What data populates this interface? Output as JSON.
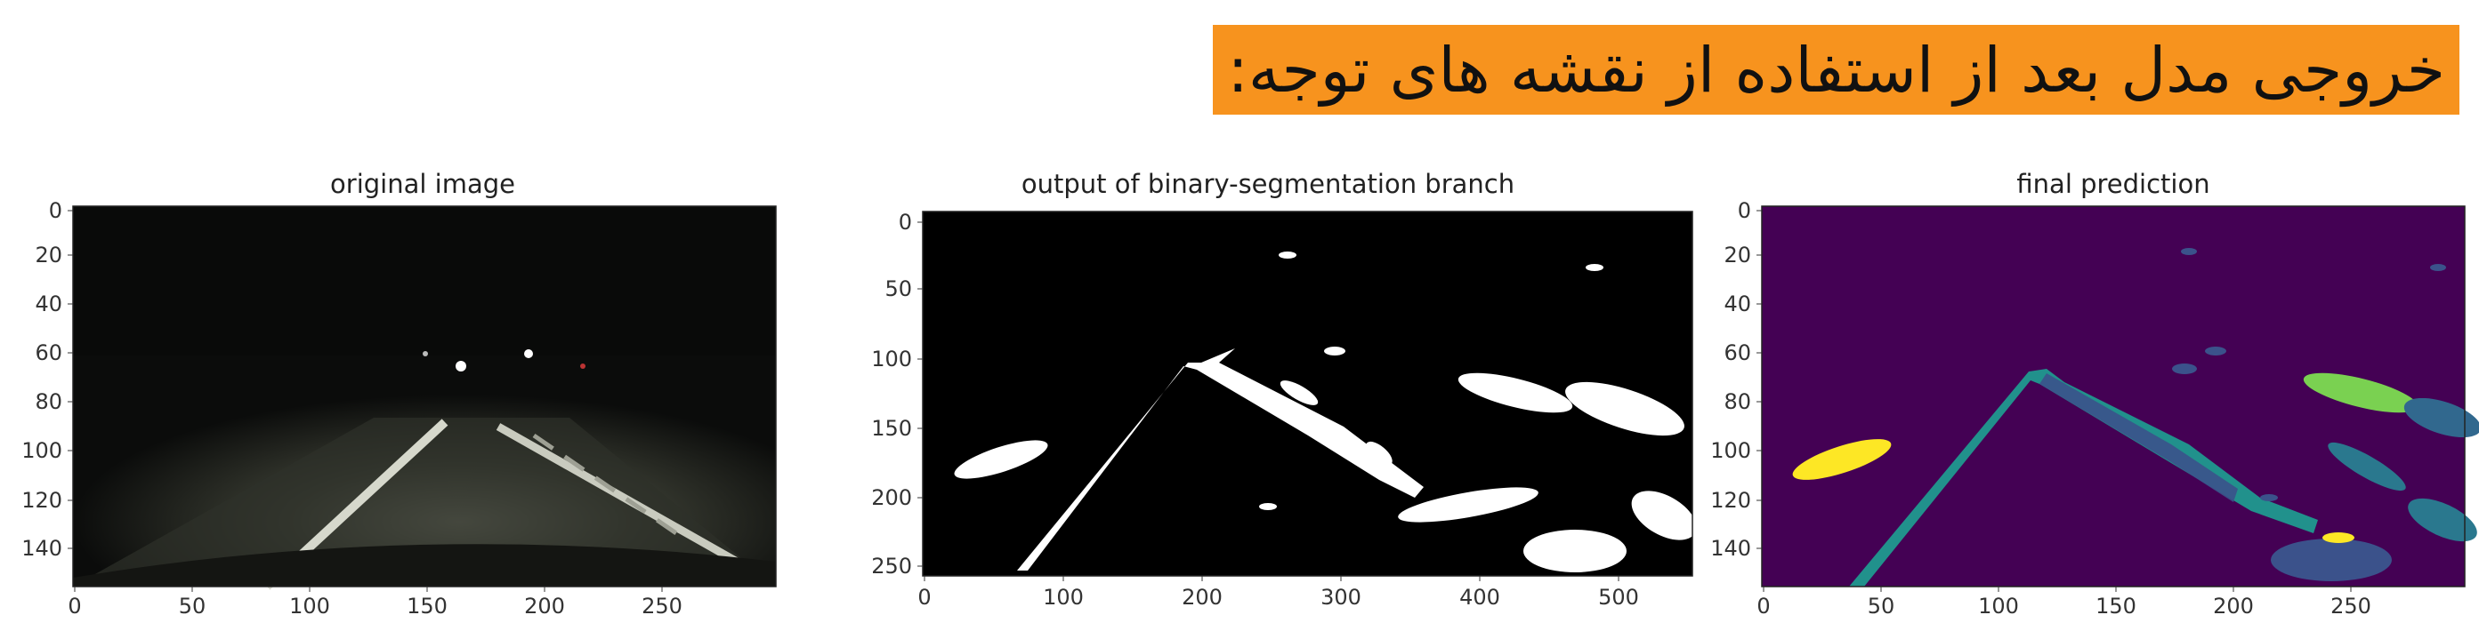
{
  "heading": "خروجی مدل بعد از استفاده از نقشه های توجه:",
  "panels": [
    {
      "title": "original image",
      "yticks": [
        "0",
        "20",
        "40",
        "60",
        "80",
        "100",
        "120",
        "140"
      ],
      "xticks": [
        "0",
        "50",
        "100",
        "150",
        "200",
        "250"
      ]
    },
    {
      "title": "output of binary-segmentation branch",
      "yticks": [
        "0",
        "50",
        "100",
        "150",
        "200",
        "250"
      ],
      "xticks": [
        "0",
        "100",
        "200",
        "300",
        "400",
        "500"
      ]
    },
    {
      "title": "final prediction",
      "yticks": [
        "0",
        "20",
        "40",
        "60",
        "80",
        "100",
        "120",
        "140"
      ],
      "xticks": [
        "0",
        "50",
        "100",
        "150",
        "200",
        "250"
      ]
    }
  ]
}
